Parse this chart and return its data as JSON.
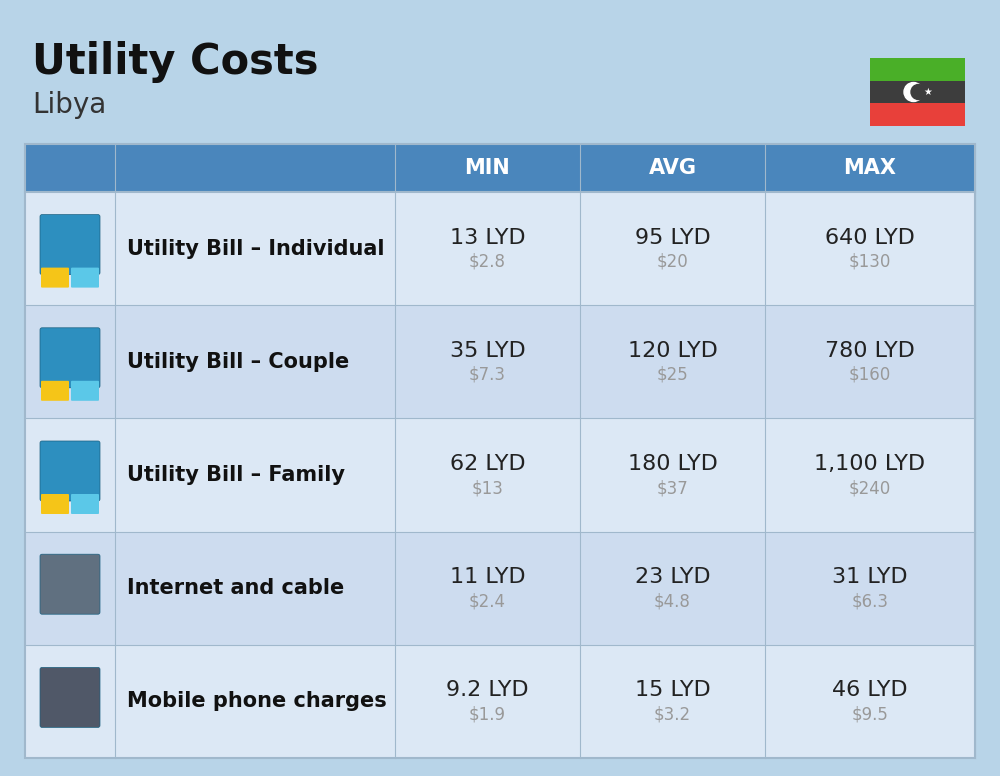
{
  "title": "Utility Costs",
  "subtitle": "Libya",
  "background_color": "#b8d4e8",
  "header_bg_color": "#4a86bc",
  "header_text_color": "#ffffff",
  "row_bg_colors": [
    "#dce8f5",
    "#cddcef"
  ],
  "col_header_labels": [
    "MIN",
    "AVG",
    "MAX"
  ],
  "rows": [
    {
      "label": "Utility Bill – Individual",
      "min_lyd": "13 LYD",
      "min_usd": "$2.8",
      "avg_lyd": "95 LYD",
      "avg_usd": "$20",
      "max_lyd": "640 LYD",
      "max_usd": "$130"
    },
    {
      "label": "Utility Bill – Couple",
      "min_lyd": "35 LYD",
      "min_usd": "$7.3",
      "avg_lyd": "120 LYD",
      "avg_usd": "$25",
      "max_lyd": "780 LYD",
      "max_usd": "$160"
    },
    {
      "label": "Utility Bill – Family",
      "min_lyd": "62 LYD",
      "min_usd": "$13",
      "avg_lyd": "180 LYD",
      "avg_usd": "$37",
      "max_lyd": "1,100 LYD",
      "max_usd": "$240"
    },
    {
      "label": "Internet and cable",
      "min_lyd": "11 LYD",
      "min_usd": "$2.4",
      "avg_lyd": "23 LYD",
      "avg_usd": "$4.8",
      "max_lyd": "31 LYD",
      "max_usd": "$6.3"
    },
    {
      "label": "Mobile phone charges",
      "min_lyd": "9.2 LYD",
      "min_usd": "$1.9",
      "avg_lyd": "15 LYD",
      "avg_usd": "$3.2",
      "max_lyd": "46 LYD",
      "max_usd": "$9.5"
    }
  ],
  "flag_stripes": [
    "#e8403a",
    "#3d3d3d",
    "#4aaf28"
  ],
  "title_fontsize": 30,
  "subtitle_fontsize": 20,
  "header_fontsize": 15,
  "label_fontsize": 15,
  "value_fontsize": 16,
  "usd_fontsize": 12,
  "usd_color": "#999999",
  "label_color": "#111111",
  "value_color": "#222222",
  "grid_color": "#a0b8cc"
}
